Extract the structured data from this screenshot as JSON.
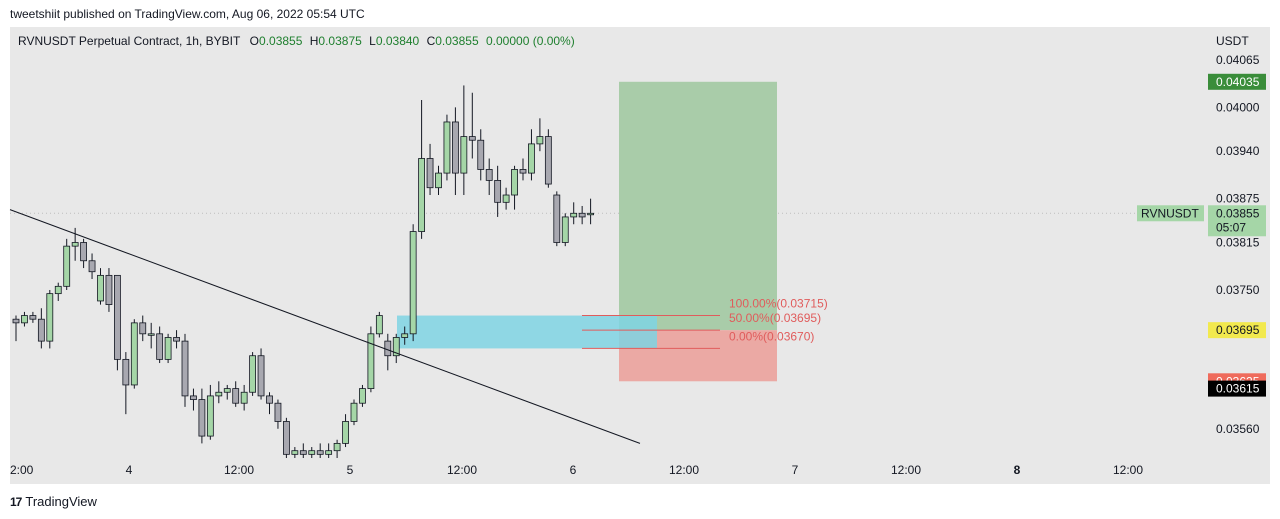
{
  "header": {
    "published": "tweetshiit published on TradingView.com, Aug 06, 2022 05:54 UTC"
  },
  "legend": {
    "symbol": "RVNUSDT Perpetual Contract, 1h, BYBIT",
    "open_label": "O",
    "open": "0.03855",
    "high_label": "H",
    "high": "0.03875",
    "low_label": "L",
    "low": "0.03840",
    "close_label": "C",
    "close": "0.03855",
    "change": "0.00000 (0.00%)"
  },
  "currency": "USDT",
  "footer": {
    "brand": "TradingView"
  },
  "colors": {
    "up": "#a5d6a7",
    "down": "#a8a8b0",
    "wick": "#131722",
    "target_zone": "#a9cca9",
    "stop_zone": "#eba9a4",
    "demand_zone": "#7fd3e3",
    "fib": "#e05c5c",
    "tag_target": "#3a8d3a",
    "tag_stop_red": "#ef6b5c",
    "tag_stop_black": "#000000",
    "tag_yellow": "#f2e94e",
    "tag_last": "#a5d6a7"
  },
  "chart_data": {
    "type": "candlestick",
    "symbol": "RVNUSDT",
    "timeframe": "1h",
    "y_axis": {
      "ticks": [
        "0.04065",
        "0.04000",
        "0.03940",
        "0.03875",
        "0.03815",
        "0.03750",
        "0.03560"
      ],
      "range": [
        0.0352,
        0.0411
      ]
    },
    "x_axis": {
      "ticks": [
        "2:00",
        "4",
        "12:00",
        "5",
        "12:00",
        "6",
        "12:00",
        "7",
        "12:00",
        "8",
        "12:00"
      ],
      "bold": [
        "8"
      ]
    },
    "price_tags": [
      {
        "label": "0.04035",
        "value": 0.04035,
        "color": "tag_target"
      },
      {
        "label": "0.03855",
        "sub": "05:07",
        "name": "RVNUSDT",
        "value": 0.03855,
        "color": "tag_last"
      },
      {
        "label": "0.03695",
        "value": 0.03695,
        "color": "tag_yellow"
      },
      {
        "label": "0.03625",
        "value": 0.03625,
        "color": "tag_stop_red"
      },
      {
        "label": "0.03615",
        "value": 0.03615,
        "color": "tag_stop_black"
      }
    ],
    "fib_levels": [
      {
        "label": "100.00%(0.03715)",
        "value": 0.03715
      },
      {
        "label": "50.00%(0.03695)",
        "value": 0.03695
      },
      {
        "label": "0.00%(0.03670)",
        "value": 0.0367
      }
    ],
    "long_position": {
      "entry": 0.03695,
      "target": 0.04035,
      "stop": 0.03625
    },
    "demand_zone": {
      "top": 0.03715,
      "bottom": 0.0367
    },
    "trendline": {
      "from_price": 0.0386,
      "to_price": 0.0354
    },
    "candles": [
      [
        0.0371,
        0.03715,
        0.0368,
        0.03705
      ],
      [
        0.03705,
        0.0372,
        0.037,
        0.03715
      ],
      [
        0.03715,
        0.0372,
        0.03705,
        0.0371
      ],
      [
        0.0371,
        0.03725,
        0.0367,
        0.0368
      ],
      [
        0.0368,
        0.0375,
        0.0367,
        0.03745
      ],
      [
        0.03745,
        0.0376,
        0.03735,
        0.03755
      ],
      [
        0.03755,
        0.0382,
        0.0375,
        0.0381
      ],
      [
        0.0381,
        0.03835,
        0.0379,
        0.03815
      ],
      [
        0.03815,
        0.0382,
        0.0378,
        0.0379
      ],
      [
        0.0379,
        0.038,
        0.03765,
        0.03775
      ],
      [
        0.03735,
        0.0378,
        0.0373,
        0.0377
      ],
      [
        0.0377,
        0.0378,
        0.0372,
        0.0373
      ],
      [
        0.0377,
        0.0377,
        0.0364,
        0.03655
      ],
      [
        0.03655,
        0.03665,
        0.0358,
        0.0362
      ],
      [
        0.0362,
        0.0371,
        0.03615,
        0.03705
      ],
      [
        0.03705,
        0.03715,
        0.0368,
        0.0369
      ],
      [
        0.0369,
        0.03705,
        0.0367,
        0.0369
      ],
      [
        0.0369,
        0.037,
        0.0365,
        0.03655
      ],
      [
        0.03655,
        0.0369,
        0.0365,
        0.03685
      ],
      [
        0.03685,
        0.03695,
        0.0367,
        0.0368
      ],
      [
        0.0368,
        0.0369,
        0.0359,
        0.03605
      ],
      [
        0.03605,
        0.03615,
        0.03585,
        0.036
      ],
      [
        0.036,
        0.03615,
        0.0354,
        0.0355
      ],
      [
        0.0355,
        0.0362,
        0.03545,
        0.03605
      ],
      [
        0.03605,
        0.03625,
        0.03595,
        0.0361
      ],
      [
        0.0361,
        0.0362,
        0.036,
        0.03615
      ],
      [
        0.03615,
        0.03625,
        0.0359,
        0.03595
      ],
      [
        0.03595,
        0.0362,
        0.03585,
        0.0361
      ],
      [
        0.0361,
        0.03665,
        0.03605,
        0.0366
      ],
      [
        0.0366,
        0.0367,
        0.036,
        0.03605
      ],
      [
        0.03605,
        0.0361,
        0.0358,
        0.03595
      ],
      [
        0.03595,
        0.036,
        0.0356,
        0.0357
      ],
      [
        0.0357,
        0.03575,
        0.0352,
        0.03525
      ],
      [
        0.03525,
        0.03535,
        0.0352,
        0.0353
      ],
      [
        0.0353,
        0.0354,
        0.0352,
        0.03525
      ],
      [
        0.03525,
        0.03535,
        0.0352,
        0.0353
      ],
      [
        0.0353,
        0.0354,
        0.0352,
        0.03525
      ],
      [
        0.03525,
        0.0354,
        0.0352,
        0.0353
      ],
      [
        0.0353,
        0.03545,
        0.0352,
        0.0354
      ],
      [
        0.0354,
        0.0358,
        0.03535,
        0.0357
      ],
      [
        0.0357,
        0.036,
        0.03565,
        0.03595
      ],
      [
        0.03595,
        0.0362,
        0.0359,
        0.03615
      ],
      [
        0.03615,
        0.037,
        0.0361,
        0.0369
      ],
      [
        0.0369,
        0.0372,
        0.03685,
        0.03715
      ],
      [
        0.0368,
        0.0369,
        0.0364,
        0.0366
      ],
      [
        0.0366,
        0.0369,
        0.0365,
        0.03685
      ],
      [
        0.03685,
        0.037,
        0.03675,
        0.0369
      ],
      [
        0.0369,
        0.0384,
        0.0368,
        0.0383
      ],
      [
        0.0383,
        0.0401,
        0.0382,
        0.0393
      ],
      [
        0.0393,
        0.0395,
        0.0388,
        0.0389
      ],
      [
        0.0389,
        0.0392,
        0.0388,
        0.0391
      ],
      [
        0.0391,
        0.0399,
        0.039,
        0.0398
      ],
      [
        0.0398,
        0.04,
        0.0388,
        0.0391
      ],
      [
        0.0391,
        0.0403,
        0.0388,
        0.0396
      ],
      [
        0.0396,
        0.0402,
        0.0393,
        0.03955
      ],
      [
        0.03955,
        0.0397,
        0.039,
        0.03915
      ],
      [
        0.03915,
        0.0393,
        0.0388,
        0.039
      ],
      [
        0.039,
        0.0392,
        0.0385,
        0.0387
      ],
      [
        0.0387,
        0.0389,
        0.0386,
        0.0388
      ],
      [
        0.0388,
        0.0392,
        0.0386,
        0.03915
      ],
      [
        0.03915,
        0.0393,
        0.039,
        0.0391
      ],
      [
        0.0391,
        0.0397,
        0.039,
        0.0395
      ],
      [
        0.0395,
        0.03985,
        0.0394,
        0.0396
      ],
      [
        0.0396,
        0.0397,
        0.0389,
        0.03895
      ],
      [
        0.0388,
        0.03885,
        0.0381,
        0.03815
      ],
      [
        0.03815,
        0.03855,
        0.0381,
        0.0385
      ],
      [
        0.0385,
        0.0387,
        0.0384,
        0.03855
      ],
      [
        0.03855,
        0.03865,
        0.0384,
        0.0385
      ],
      [
        0.03855,
        0.03875,
        0.0384,
        0.03855
      ]
    ]
  }
}
